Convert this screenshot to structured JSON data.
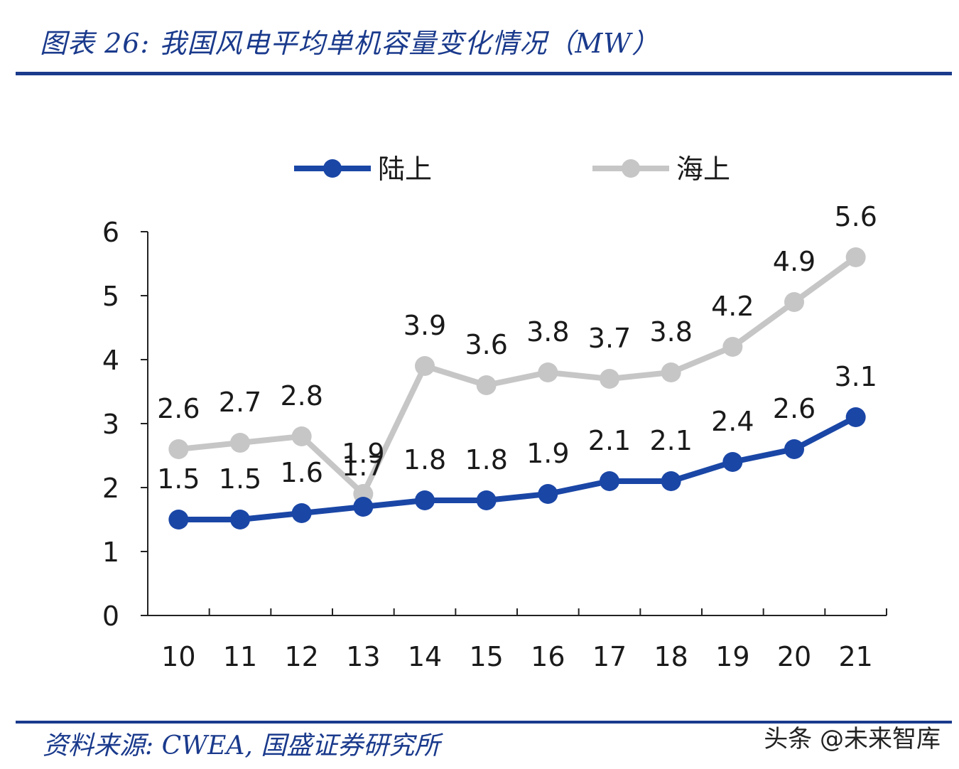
{
  "header": {
    "title": "图表 26:  我国风电平均单机容量变化情况（MW）"
  },
  "footer": {
    "source": "资料来源:  CWEA, 国盛证券研究所",
    "watermark": "头条 @未来智库"
  },
  "chart_data": {
    "type": "line",
    "title": "",
    "xlabel": "",
    "ylabel": "",
    "categories": [
      "10",
      "11",
      "12",
      "13",
      "14",
      "15",
      "16",
      "17",
      "18",
      "19",
      "20",
      "21"
    ],
    "ylim": [
      0,
      6
    ],
    "yticks": [
      "0",
      "1",
      "2",
      "3",
      "4",
      "5",
      "6"
    ],
    "grid": false,
    "legend_position": "top-center",
    "series": [
      {
        "name": "陆上",
        "color": "#1a46a6",
        "values": [
          1.5,
          1.5,
          1.6,
          1.7,
          1.8,
          1.8,
          1.9,
          2.1,
          2.1,
          2.4,
          2.6,
          3.1
        ],
        "labels": [
          "1.5",
          "1.5",
          "1.6",
          "1.7",
          "1.8",
          "1.8",
          "1.9",
          "2.1",
          "2.1",
          "2.4",
          "2.6",
          "3.1"
        ]
      },
      {
        "name": "海上",
        "color": "#c6c6c6",
        "values": [
          2.6,
          2.7,
          2.8,
          1.9,
          3.9,
          3.6,
          3.8,
          3.7,
          3.8,
          4.2,
          4.9,
          5.6
        ],
        "labels": [
          "2.6",
          "2.7",
          "2.8",
          "1.9",
          "3.9",
          "3.6",
          "3.8",
          "3.7",
          "3.8",
          "4.2",
          "4.9",
          "5.6"
        ]
      }
    ]
  }
}
